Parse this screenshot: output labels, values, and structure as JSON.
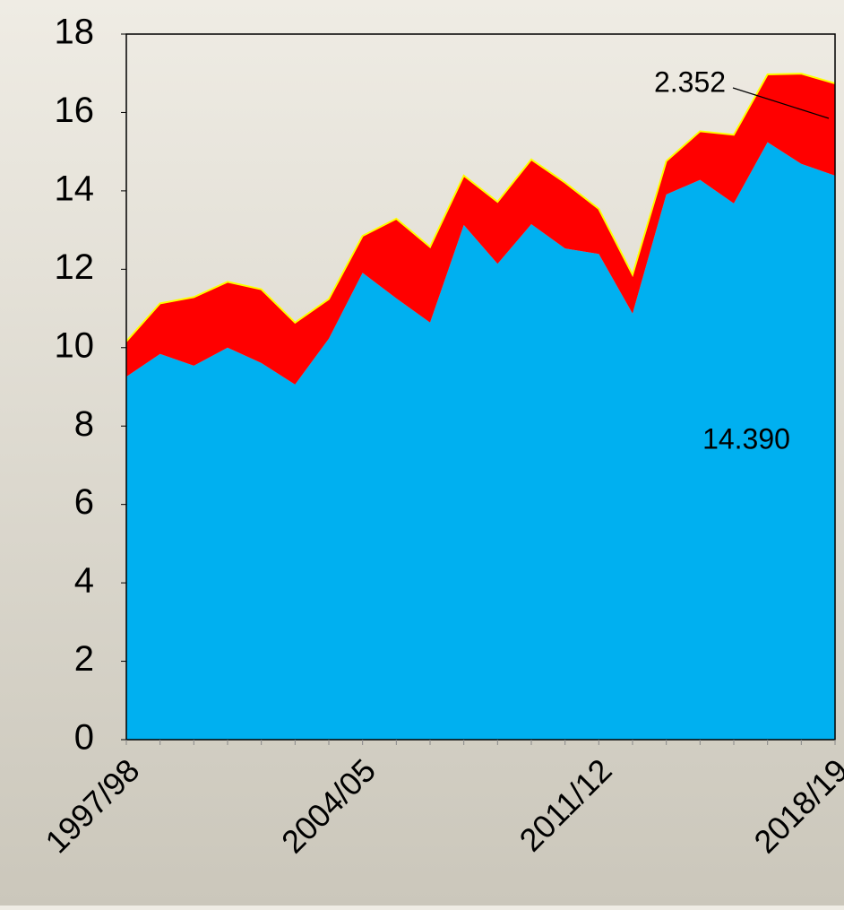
{
  "chart_data": {
    "type": "stacked_area",
    "categories": [
      "1997/98",
      null,
      null,
      null,
      null,
      null,
      null,
      "2004/05",
      null,
      null,
      null,
      null,
      null,
      null,
      "2011/12",
      null,
      null,
      null,
      null,
      null,
      null,
      "2018/19"
    ],
    "series": [
      {
        "color": "#00b0f0",
        "values": [
          9.26,
          9.84,
          9.54,
          10.0,
          9.61,
          9.06,
          10.23,
          11.91,
          11.26,
          10.64,
          13.13,
          12.14,
          13.15,
          12.53,
          12.39,
          10.87,
          13.91,
          14.28,
          13.68,
          15.24,
          14.69,
          14.39
        ],
        "value_labels": [
          null,
          null,
          null,
          null,
          null,
          null,
          null,
          null,
          null,
          null,
          null,
          null,
          null,
          null,
          null,
          null,
          null,
          null,
          null,
          null,
          null,
          "14.390"
        ]
      },
      {
        "color": "#ff0000",
        "edge_color": "#ffff00",
        "values": [
          0.9,
          1.29,
          1.75,
          1.68,
          1.88,
          1.58,
          1.01,
          0.94,
          2.03,
          1.93,
          1.26,
          1.58,
          1.65,
          1.68,
          1.15,
          0.99,
          0.85,
          1.24,
          1.75,
          1.73,
          2.3,
          2.352
        ]
      }
    ],
    "ylim": [
      0,
      18
    ],
    "yticks": [
      0,
      2,
      4,
      6,
      8,
      10,
      12,
      14,
      16,
      18
    ]
  }
}
